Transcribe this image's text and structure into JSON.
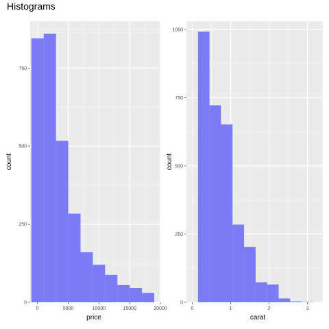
{
  "figure": {
    "title": "Histograms"
  },
  "chart_data": [
    {
      "type": "bar",
      "subtype": "histogram",
      "title": "",
      "xlabel": "price",
      "ylabel": "count",
      "fill_color": "#7575f4",
      "panel_bg": "#ebebeb",
      "grid": true,
      "xlim": [
        -1200,
        20000
      ],
      "ylim": [
        0,
        900
      ],
      "xticks": [
        0,
        5000,
        10000,
        15000,
        20000
      ],
      "xtick_labels": [
        "0",
        "5000",
        "10000",
        "15000",
        "20000"
      ],
      "yticks": [
        0,
        250,
        500,
        750
      ],
      "ytick_labels": [
        "0",
        "250",
        "500",
        "750"
      ],
      "bins": [
        {
          "x0": -1000,
          "x1": 1000,
          "count": 845
        },
        {
          "x0": 1000,
          "x1": 3000,
          "count": 860
        },
        {
          "x0": 3000,
          "x1": 5000,
          "count": 517
        },
        {
          "x0": 5000,
          "x1": 7000,
          "count": 284
        },
        {
          "x0": 7000,
          "x1": 9000,
          "count": 160
        },
        {
          "x0": 9000,
          "x1": 11000,
          "count": 120
        },
        {
          "x0": 11000,
          "x1": 13000,
          "count": 88
        },
        {
          "x0": 13000,
          "x1": 15000,
          "count": 55
        },
        {
          "x0": 15000,
          "x1": 17000,
          "count": 46
        },
        {
          "x0": 17000,
          "x1": 19000,
          "count": 30
        }
      ]
    },
    {
      "type": "bar",
      "subtype": "histogram",
      "title": "",
      "xlabel": "carat",
      "ylabel": "count",
      "fill_color": "#7575f4",
      "panel_bg": "#ebebeb",
      "grid": true,
      "xlim": [
        -0.15,
        3.4
      ],
      "ylim": [
        0,
        1030
      ],
      "xticks": [
        0,
        1,
        2,
        3
      ],
      "xtick_labels": [
        "0",
        "1",
        "2",
        "3"
      ],
      "yticks": [
        0,
        250,
        500,
        750,
        1000
      ],
      "ytick_labels": [
        "0",
        "250",
        "500",
        "750",
        "1000"
      ],
      "bins": [
        {
          "x0": 0.15,
          "x1": 0.45,
          "count": 992
        },
        {
          "x0": 0.45,
          "x1": 0.75,
          "count": 722
        },
        {
          "x0": 0.75,
          "x1": 1.05,
          "count": 652
        },
        {
          "x0": 1.05,
          "x1": 1.35,
          "count": 285
        },
        {
          "x0": 1.35,
          "x1": 1.65,
          "count": 203
        },
        {
          "x0": 1.65,
          "x1": 1.95,
          "count": 73
        },
        {
          "x0": 1.95,
          "x1": 2.25,
          "count": 65
        },
        {
          "x0": 2.25,
          "x1": 2.55,
          "count": 14
        },
        {
          "x0": 2.55,
          "x1": 2.85,
          "count": 3
        },
        {
          "x0": 2.85,
          "x1": 3.15,
          "count": 1
        }
      ]
    }
  ]
}
